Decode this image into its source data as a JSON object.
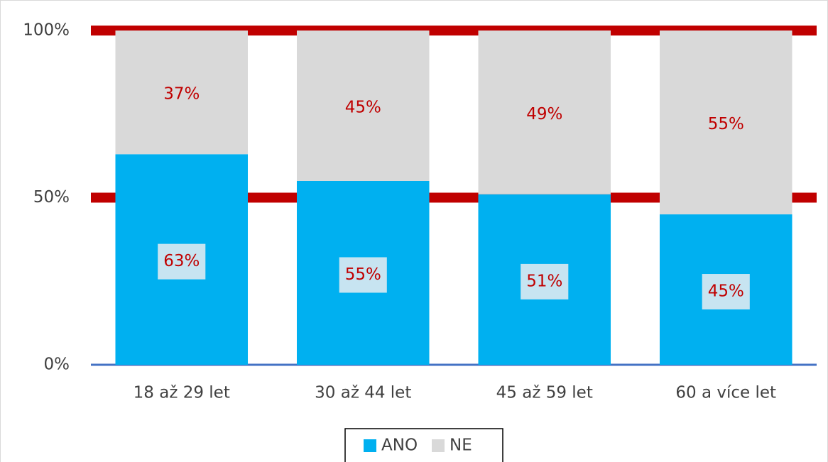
{
  "chart_data": {
    "type": "stacked_bar",
    "categories": [
      "18 až 29 let",
      "30 až 44 let",
      "45 až 59 let",
      "60 a více let"
    ],
    "series": [
      {
        "name": "ANO",
        "color": "#00b0f0",
        "values": [
          63,
          55,
          51,
          45
        ],
        "value_labels": [
          "63%",
          "55%",
          "51%",
          "45%"
        ]
      },
      {
        "name": "NE",
        "color": "#d9d9d9",
        "values": [
          37,
          45,
          49,
          55
        ],
        "value_labels": [
          "37%",
          "45%",
          "49%",
          "55%"
        ]
      }
    ],
    "ylim": [
      0,
      100
    ],
    "yticks": [
      {
        "value": 0,
        "label": "0%"
      },
      {
        "value": 50,
        "label": "50%"
      },
      {
        "value": 100,
        "label": "100%"
      }
    ],
    "grid": true,
    "grid_color": "#c00000",
    "label_color": "#c00000",
    "legend": "bottom"
  }
}
